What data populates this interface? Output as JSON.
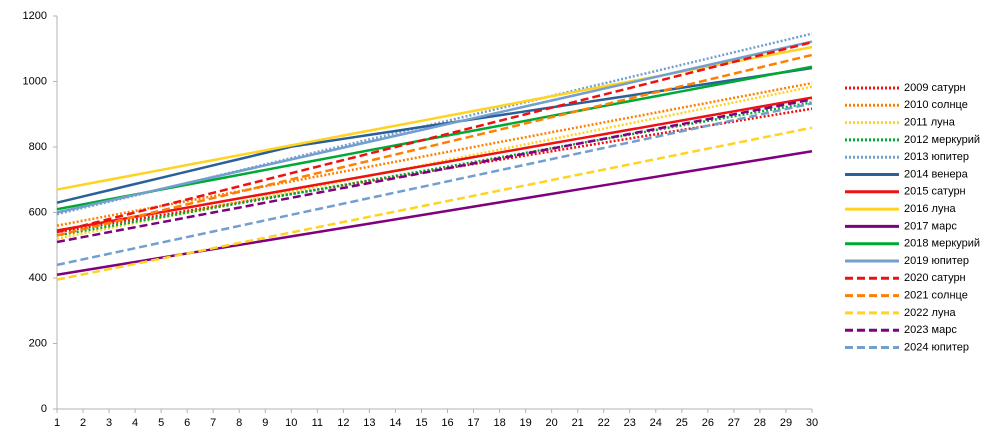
{
  "chart_data": {
    "type": "line",
    "x": [
      1,
      2,
      3,
      4,
      5,
      6,
      7,
      8,
      9,
      10,
      11,
      12,
      13,
      14,
      15,
      16,
      17,
      18,
      19,
      20,
      21,
      22,
      23,
      24,
      25,
      26,
      27,
      28,
      29,
      30
    ],
    "xlim": [
      1,
      30
    ],
    "xticks": [
      1,
      2,
      3,
      4,
      5,
      6,
      7,
      8,
      9,
      10,
      11,
      12,
      13,
      14,
      15,
      16,
      17,
      18,
      19,
      20,
      21,
      22,
      23,
      24,
      25,
      26,
      27,
      28,
      29,
      30
    ],
    "ylim": [
      0,
      1200
    ],
    "yticks": [
      0,
      200,
      400,
      600,
      800,
      1000,
      1200
    ],
    "grid": false,
    "legend": "right",
    "series": [
      {
        "name": "2009 сатурн",
        "color": "#ee1111",
        "style": "dotted",
        "values": [
          540,
          553,
          566,
          579,
          592,
          605,
          618,
          631,
          644,
          657,
          670,
          683,
          696,
          709,
          722,
          735,
          748,
          761,
          774,
          787,
          800,
          813,
          826,
          839,
          852,
          865,
          878,
          891,
          904,
          917
        ]
      },
      {
        "name": "2010 солнце",
        "color": "#ff8000",
        "style": "dotted",
        "values": [
          560,
          575,
          590,
          605,
          620,
          635,
          650,
          665,
          680,
          695,
          710,
          725,
          740,
          755,
          770,
          785,
          800,
          815,
          830,
          845,
          860,
          875,
          890,
          905,
          920,
          935,
          950,
          965,
          980,
          995
        ]
      },
      {
        "name": "2011 луна",
        "color": "#ffd320",
        "style": "dotted",
        "values": [
          520,
          536,
          552,
          568,
          584,
          600,
          616,
          632,
          648,
          664,
          680,
          696,
          712,
          728,
          744,
          760,
          776,
          792,
          808,
          824,
          840,
          856,
          872,
          888,
          904,
          920,
          936,
          952,
          968,
          984
        ]
      },
      {
        "name": "2012 меркурий",
        "color": "#00a933",
        "style": "dotted",
        "values": [
          530,
          544,
          558,
          572,
          586,
          600,
          614,
          628,
          642,
          656,
          670,
          684,
          698,
          712,
          726,
          740,
          754,
          768,
          782,
          796,
          810,
          824,
          838,
          852,
          866,
          880,
          894,
          908,
          922,
          936
        ]
      },
      {
        "name": "2013 юпитер",
        "color": "#729fcf",
        "style": "dotted",
        "values": [
          595,
          614,
          633,
          652,
          671,
          690,
          709,
          728,
          747,
          766,
          785,
          804,
          823,
          842,
          861,
          880,
          899,
          918,
          937,
          956,
          975,
          994,
          1013,
          1032,
          1051,
          1070,
          1089,
          1108,
          1127,
          1146
        ]
      },
      {
        "name": "2014 венера",
        "color": "#2a6099",
        "style": "solid",
        "values": [
          630,
          649,
          668,
          687,
          706,
          725,
          744,
          763,
          782,
          801,
          813,
          825,
          837,
          849,
          861,
          873,
          885,
          897,
          909,
          921,
          933,
          945,
          957,
          969,
          981,
          993,
          1005,
          1017,
          1029,
          1041
        ]
      },
      {
        "name": "2015 сатурн",
        "color": "#ee1111",
        "style": "solid",
        "values": [
          545,
          559,
          573,
          587,
          601,
          615,
          629,
          643,
          657,
          671,
          685,
          699,
          713,
          727,
          741,
          755,
          769,
          783,
          797,
          811,
          825,
          839,
          853,
          867,
          881,
          895,
          909,
          923,
          937,
          951
        ]
      },
      {
        "name": "2016 луна",
        "color": "#ffd320",
        "style": "solid",
        "values": [
          670,
          685,
          700,
          715,
          730,
          745,
          760,
          775,
          790,
          805,
          820,
          835,
          850,
          865,
          880,
          895,
          910,
          925,
          940,
          955,
          970,
          985,
          1000,
          1015,
          1030,
          1045,
          1060,
          1075,
          1090,
          1105
        ]
      },
      {
        "name": "2017 марс",
        "color": "#800080",
        "style": "solid",
        "values": [
          410,
          423,
          436,
          449,
          462,
          475,
          488,
          501,
          514,
          527,
          540,
          553,
          566,
          579,
          592,
          605,
          618,
          631,
          644,
          657,
          670,
          683,
          696,
          709,
          722,
          735,
          748,
          761,
          774,
          787
        ]
      },
      {
        "name": "2018 меркурий",
        "color": "#00a933",
        "style": "solid",
        "values": [
          610,
          625,
          640,
          655,
          670,
          685,
          700,
          715,
          730,
          745,
          760,
          775,
          790,
          805,
          820,
          835,
          850,
          865,
          880,
          895,
          910,
          925,
          940,
          955,
          970,
          985,
          1000,
          1015,
          1030,
          1045
        ]
      },
      {
        "name": "2019 юпитер",
        "color": "#729fcf",
        "style": "solid",
        "values": [
          600,
          618,
          636,
          654,
          672,
          690,
          708,
          726,
          744,
          762,
          780,
          798,
          816,
          834,
          852,
          870,
          888,
          906,
          924,
          942,
          960,
          978,
          996,
          1014,
          1032,
          1050,
          1068,
          1086,
          1104,
          1122
        ]
      },
      {
        "name": "2020 сатурн",
        "color": "#ee1111",
        "style": "dashed",
        "values": [
          540,
          560,
          580,
          600,
          620,
          640,
          660,
          680,
          700,
          720,
          740,
          760,
          780,
          800,
          820,
          840,
          860,
          880,
          900,
          920,
          940,
          960,
          980,
          1000,
          1020,
          1040,
          1060,
          1080,
          1100,
          1120
        ]
      },
      {
        "name": "2021 солнце",
        "color": "#ff8000",
        "style": "dashed",
        "values": [
          530,
          549,
          568,
          587,
          606,
          625,
          644,
          663,
          682,
          701,
          720,
          739,
          758,
          777,
          796,
          815,
          834,
          853,
          872,
          891,
          910,
          929,
          948,
          967,
          986,
          1005,
          1024,
          1043,
          1062,
          1081
        ]
      },
      {
        "name": "2022 луна",
        "color": "#ffd320",
        "style": "dashed",
        "values": [
          395,
          411,
          427,
          443,
          459,
          475,
          491,
          507,
          523,
          539,
          555,
          571,
          587,
          603,
          619,
          635,
          651,
          667,
          683,
          699,
          715,
          731,
          747,
          763,
          779,
          795,
          811,
          827,
          843,
          859
        ]
      },
      {
        "name": "2023 марс",
        "color": "#800080",
        "style": "dashed",
        "values": [
          510,
          525,
          540,
          555,
          570,
          585,
          600,
          615,
          630,
          645,
          660,
          675,
          690,
          705,
          720,
          735,
          750,
          765,
          780,
          795,
          810,
          825,
          840,
          855,
          870,
          885,
          900,
          915,
          930,
          945
        ]
      },
      {
        "name": "2024 юпитер",
        "color": "#729fcf",
        "style": "dashed",
        "values": [
          440,
          457,
          474,
          491,
          508,
          525,
          542,
          559,
          576,
          593,
          610,
          627,
          644,
          661,
          678,
          695,
          712,
          729,
          746,
          763,
          780,
          797,
          814,
          831,
          848,
          865,
          882,
          899,
          916,
          933
        ]
      }
    ]
  }
}
